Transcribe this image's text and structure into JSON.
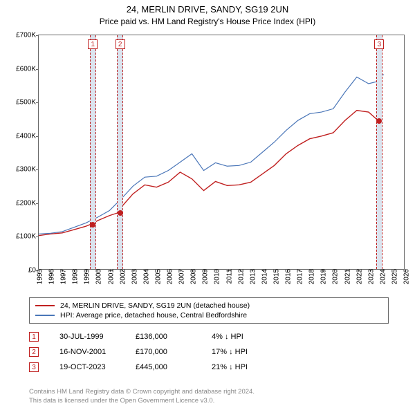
{
  "title": "24, MERLIN DRIVE, SANDY, SG19 2UN",
  "subtitle": "Price paid vs. HM Land Registry's House Price Index (HPI)",
  "chart": {
    "type": "line",
    "xlim": [
      1995,
      2026
    ],
    "ylim": [
      0,
      700000
    ],
    "xtick_step": 1,
    "ytick_step": 100000,
    "xtick_labels": [
      "1995",
      "1996",
      "1997",
      "1998",
      "1999",
      "2000",
      "2001",
      "2002",
      "2003",
      "2004",
      "2005",
      "2006",
      "2007",
      "2008",
      "2009",
      "2010",
      "2011",
      "2012",
      "2013",
      "2014",
      "2015",
      "2016",
      "2017",
      "2018",
      "2019",
      "2020",
      "2021",
      "2022",
      "2023",
      "2024",
      "2025",
      "2026"
    ],
    "ytick_labels": [
      "£0",
      "£100K",
      "£200K",
      "£300K",
      "£400K",
      "£500K",
      "£600K",
      "£700K"
    ],
    "background_color": "#ffffff",
    "border_color": "#666666",
    "series": [
      {
        "name": "property",
        "color": "#c02020",
        "width": 1.4,
        "label": "24, MERLIN DRIVE, SANDY, SG19 2UN (detached house)",
        "points": [
          [
            1995,
            100000
          ],
          [
            1996,
            105000
          ],
          [
            1997,
            108000
          ],
          [
            1998,
            118000
          ],
          [
            1999,
            128000
          ],
          [
            1999.58,
            136000
          ],
          [
            2000,
            145000
          ],
          [
            2001,
            160000
          ],
          [
            2001.88,
            170000
          ],
          [
            2002,
            185000
          ],
          [
            2003,
            225000
          ],
          [
            2004,
            252000
          ],
          [
            2005,
            245000
          ],
          [
            2006,
            260000
          ],
          [
            2007,
            290000
          ],
          [
            2008,
            270000
          ],
          [
            2009,
            235000
          ],
          [
            2010,
            262000
          ],
          [
            2011,
            250000
          ],
          [
            2012,
            252000
          ],
          [
            2013,
            260000
          ],
          [
            2014,
            285000
          ],
          [
            2015,
            310000
          ],
          [
            2016,
            345000
          ],
          [
            2017,
            370000
          ],
          [
            2018,
            390000
          ],
          [
            2019,
            398000
          ],
          [
            2020,
            408000
          ],
          [
            2021,
            445000
          ],
          [
            2022,
            475000
          ],
          [
            2023,
            470000
          ],
          [
            2023.8,
            445000
          ],
          [
            2024,
            445000
          ]
        ]
      },
      {
        "name": "hpi",
        "color": "#4a76b8",
        "width": 1.2,
        "label": "HPI: Average price, detached house, Central Bedfordshire",
        "points": [
          [
            1995,
            105000
          ],
          [
            1996,
            107000
          ],
          [
            1997,
            112000
          ],
          [
            1998,
            125000
          ],
          [
            1999,
            138000
          ],
          [
            2000,
            155000
          ],
          [
            2001,
            175000
          ],
          [
            2002,
            210000
          ],
          [
            2003,
            248000
          ],
          [
            2004,
            275000
          ],
          [
            2005,
            278000
          ],
          [
            2006,
            295000
          ],
          [
            2007,
            320000
          ],
          [
            2008,
            345000
          ],
          [
            2009,
            295000
          ],
          [
            2010,
            318000
          ],
          [
            2011,
            308000
          ],
          [
            2012,
            310000
          ],
          [
            2013,
            320000
          ],
          [
            2014,
            350000
          ],
          [
            2015,
            380000
          ],
          [
            2016,
            415000
          ],
          [
            2017,
            445000
          ],
          [
            2018,
            465000
          ],
          [
            2019,
            470000
          ],
          [
            2020,
            480000
          ],
          [
            2021,
            530000
          ],
          [
            2022,
            575000
          ],
          [
            2023,
            555000
          ],
          [
            2023.8,
            562000
          ],
          [
            2024,
            580000
          ],
          [
            2024.3,
            582000
          ]
        ]
      }
    ],
    "sale_bands": [
      {
        "x": 1999.58,
        "half_width": 0.25
      },
      {
        "x": 2001.88,
        "half_width": 0.25
      },
      {
        "x": 2023.8,
        "half_width": 0.25
      }
    ],
    "sale_markers": [
      {
        "num": "1",
        "x": 1999.58,
        "price_y": 136000
      },
      {
        "num": "2",
        "x": 2001.88,
        "price_y": 170000
      },
      {
        "num": "3",
        "x": 2023.8,
        "price_y": 445000
      }
    ]
  },
  "legend": {
    "series1": "24, MERLIN DRIVE, SANDY, SG19 2UN (detached house)",
    "series2": "HPI: Average price, detached house, Central Bedfordshire"
  },
  "sales": [
    {
      "num": "1",
      "date": "30-JUL-1999",
      "price": "£136,000",
      "pct": "4%",
      "arrow": "↓",
      "suffix": "HPI"
    },
    {
      "num": "2",
      "date": "16-NOV-2001",
      "price": "£170,000",
      "pct": "17%",
      "arrow": "↓",
      "suffix": "HPI"
    },
    {
      "num": "3",
      "date": "19-OCT-2023",
      "price": "£445,000",
      "pct": "21%",
      "arrow": "↓",
      "suffix": "HPI"
    }
  ],
  "footer": {
    "line1": "Contains HM Land Registry data © Crown copyright and database right 2024.",
    "line2": "This data is licensed under the Open Government Licence v3.0."
  }
}
